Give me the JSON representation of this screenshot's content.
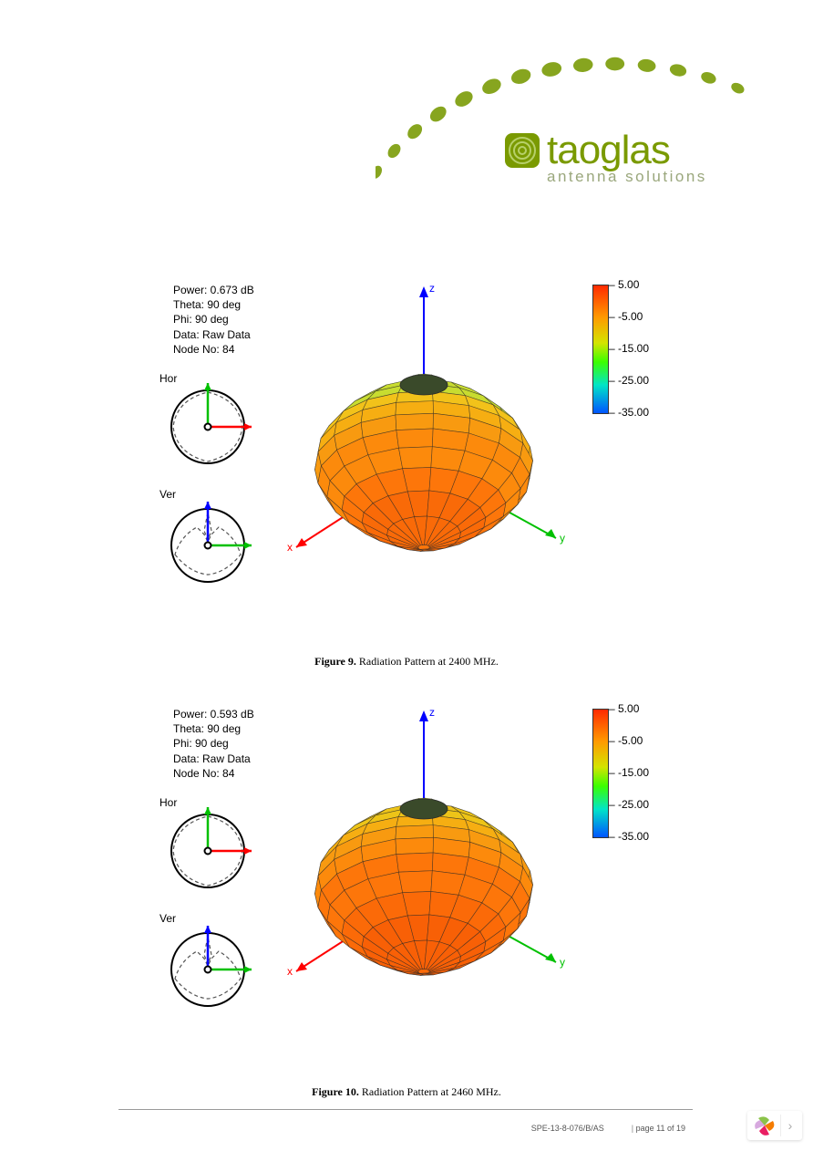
{
  "brand": {
    "name": "taoglas",
    "tagline": "antenna solutions",
    "primary_color": "#7a9a01",
    "arc_color": "#87a51f",
    "tagline_color": "#9aa77c"
  },
  "figures": [
    {
      "info": {
        "power": "Power: 0.673 dB",
        "theta": "Theta: 90 deg",
        "phi": "Phi: 90 deg",
        "data": "Data: Raw Data",
        "node": "Node No: 84"
      },
      "hor_label": "Hor",
      "ver_label": "Ver",
      "axes": {
        "x": "x",
        "y": "y",
        "z": "z",
        "x_color": "#ff0000",
        "y_color": "#00c000",
        "z_color": "#0000ff"
      },
      "mini_axis_colors": {
        "hor_h": "#ff0000",
        "hor_v": "#00c000",
        "ver_h": "#00c000",
        "ver_v": "#0000ff"
      },
      "caption_label": "Figure 9.",
      "caption_text": " Radiation Pattern at 2400 MHz.",
      "colorbar": {
        "stops": [
          {
            "c": "#ff2a00",
            "p": 0.0
          },
          {
            "c": "#ff9a00",
            "p": 0.25
          },
          {
            "c": "#d4e400",
            "p": 0.45
          },
          {
            "c": "#3bff00",
            "p": 0.6
          },
          {
            "c": "#00e5c7",
            "p": 0.78
          },
          {
            "c": "#0055ff",
            "p": 1.0
          }
        ],
        "ticks": [
          {
            "v": "5.00",
            "p": 0.0
          },
          {
            "v": "-5.00",
            "p": 0.25
          },
          {
            "v": "-15.00",
            "p": 0.5
          },
          {
            "v": "-25.00",
            "p": 0.75
          },
          {
            "v": "-35.00",
            "p": 1.0
          }
        ]
      },
      "pattern3d": {
        "top_colors": [
          "#9fd24a",
          "#b6da3a",
          "#c8dc30"
        ],
        "mid_colors": [
          "#f2c21a",
          "#f6ae12",
          "#f89a10"
        ],
        "bottom_colors": [
          "#fc8a0c",
          "#fd760a",
          "#f96a08"
        ],
        "mesh_color": "#2a2a2a"
      }
    },
    {
      "info": {
        "power": "Power: 0.593 dB",
        "theta": "Theta: 90 deg",
        "phi": "Phi: 90 deg",
        "data": "Data: Raw Data",
        "node": "Node No: 84"
      },
      "hor_label": "Hor",
      "ver_label": "Ver",
      "axes": {
        "x": "x",
        "y": "y",
        "z": "z",
        "x_color": "#ff0000",
        "y_color": "#00c000",
        "z_color": "#0000ff"
      },
      "mini_axis_colors": {
        "hor_h": "#ff0000",
        "hor_v": "#00c000",
        "ver_h": "#00c000",
        "ver_v": "#0000ff"
      },
      "caption_label": "Figure 10.",
      "caption_text": " Radiation Pattern at 2460 MHz.",
      "colorbar": {
        "stops": [
          {
            "c": "#ff2a00",
            "p": 0.0
          },
          {
            "c": "#ff9a00",
            "p": 0.25
          },
          {
            "c": "#d4e400",
            "p": 0.45
          },
          {
            "c": "#3bff00",
            "p": 0.6
          },
          {
            "c": "#00e5c7",
            "p": 0.78
          },
          {
            "c": "#0055ff",
            "p": 1.0
          }
        ],
        "ticks": [
          {
            "v": "5.00",
            "p": 0.0
          },
          {
            "v": "-5.00",
            "p": 0.25
          },
          {
            "v": "-15.00",
            "p": 0.5
          },
          {
            "v": "-25.00",
            "p": 0.75
          },
          {
            "v": "-35.00",
            "p": 1.0
          }
        ]
      },
      "pattern3d": {
        "top_colors": [
          "#c8da32",
          "#e0d220",
          "#edc418"
        ],
        "mid_colors": [
          "#f6ae12",
          "#f89a10",
          "#fc8a0c"
        ],
        "bottom_colors": [
          "#fd760a",
          "#fb6a08",
          "#f86006"
        ],
        "mesh_color": "#2a2a2a"
      }
    }
  ],
  "footer": {
    "doc_ref": "SPE-13-8-076/B/AS",
    "page_text": "page 11 of 19"
  },
  "corner": {
    "petal_colors": [
      "#8bc34a",
      "#f57c00",
      "#e91e63",
      "#9c27b0"
    ]
  }
}
